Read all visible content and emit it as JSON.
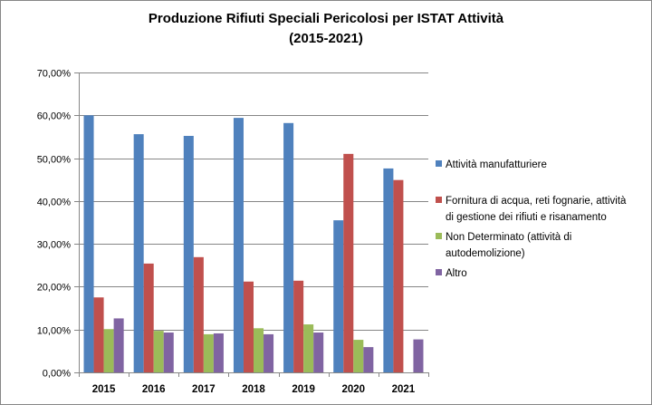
{
  "chart_data": {
    "type": "bar",
    "title_lines": [
      "Produzione Rifiuti Speciali Pericolosi per ISTAT Attività",
      "(2015-2021)"
    ],
    "categories": [
      "2015",
      "2016",
      "2017",
      "2018",
      "2019",
      "2020",
      "2021"
    ],
    "ylim": [
      0,
      70
    ],
    "yticks": [
      "0,00%",
      "10,00%",
      "20,00%",
      "30,00%",
      "40,00%",
      "50,00%",
      "60,00%",
      "70,00%"
    ],
    "grid": true,
    "legend_position": "right",
    "series": [
      {
        "name": "Attività manufatturiere",
        "legend_lines": [
          "Attività manufatturiere"
        ],
        "color": "#4F81BD",
        "values": [
          60.0,
          55.6,
          55.2,
          59.4,
          58.2,
          35.5,
          47.6
        ]
      },
      {
        "name": "Fornitura di acqua, reti fognarie, attività di gestione dei rifiuti e risanamento",
        "legend_lines": [
          "Fornitura di acqua, reti fognarie, attività",
          "di gestione dei rifiuti e risanamento"
        ],
        "color": "#C0504D",
        "values": [
          17.5,
          25.4,
          26.9,
          21.2,
          21.4,
          51.0,
          44.9
        ]
      },
      {
        "name": "Non Determinato (attività di autodemolizione)",
        "legend_lines": [
          "Non Determinato (attività di",
          "autodemolizione)"
        ],
        "color": "#9BBB59",
        "values": [
          10.1,
          9.7,
          8.9,
          10.3,
          11.2,
          7.6,
          0
        ]
      },
      {
        "name": "Altro",
        "legend_lines": [
          "Altro"
        ],
        "color": "#8064A2",
        "values": [
          12.6,
          9.3,
          9.1,
          8.9,
          9.3,
          5.9,
          7.7
        ]
      }
    ]
  }
}
